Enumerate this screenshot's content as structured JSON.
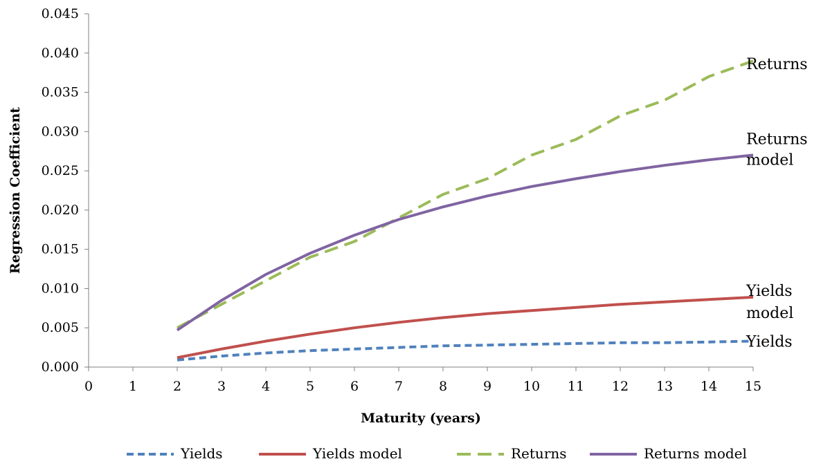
{
  "chart_data": {
    "type": "line",
    "title": "",
    "xlabel": "Maturity (years)",
    "ylabel": "Regression Coefficient",
    "xlim": [
      0,
      15
    ],
    "ylim": [
      0,
      0.045
    ],
    "x_ticks": [
      0,
      1,
      2,
      3,
      4,
      5,
      6,
      7,
      8,
      9,
      10,
      11,
      12,
      13,
      14,
      15
    ],
    "y_ticks": [
      "0.000",
      "0.005",
      "0.010",
      "0.015",
      "0.020",
      "0.025",
      "0.030",
      "0.035",
      "0.040",
      "0.045"
    ],
    "grid": false,
    "legend_position": "bottom",
    "x": [
      2,
      3,
      4,
      5,
      6,
      7,
      8,
      9,
      10,
      11,
      12,
      13,
      14,
      15
    ],
    "series": [
      {
        "name": "Yields",
        "color": "#4f81bd",
        "dash": "dash",
        "values": [
          0.0009,
          0.0014,
          0.0018,
          0.0021,
          0.0023,
          0.0025,
          0.0027,
          0.0028,
          0.0029,
          0.003,
          0.0031,
          0.0031,
          0.0032,
          0.0033
        ]
      },
      {
        "name": "Yields model",
        "color": "#c0504d",
        "dash": "solid",
        "values": [
          0.0012,
          0.0023,
          0.0033,
          0.0042,
          0.005,
          0.0057,
          0.0063,
          0.0068,
          0.0072,
          0.0076,
          0.008,
          0.0083,
          0.0086,
          0.0089
        ]
      },
      {
        "name": "Returns",
        "color": "#9bbb59",
        "dash": "longdash",
        "values": [
          0.005,
          0.008,
          0.011,
          0.014,
          0.016,
          0.019,
          0.022,
          0.024,
          0.027,
          0.029,
          0.032,
          0.034,
          0.037,
          0.039
        ]
      },
      {
        "name": "Returns model",
        "color": "#8064a2",
        "dash": "solid",
        "values": [
          0.0047,
          0.0085,
          0.0118,
          0.0145,
          0.0168,
          0.0188,
          0.0204,
          0.0218,
          0.023,
          0.024,
          0.0249,
          0.0257,
          0.0264,
          0.027
        ]
      }
    ],
    "annotations": [
      {
        "series": "Returns",
        "lines": [
          "Returns"
        ]
      },
      {
        "series": "Returns model",
        "lines": [
          "Returns",
          "model"
        ]
      },
      {
        "series": "Yields model",
        "lines": [
          "Yields",
          "model"
        ]
      },
      {
        "series": "Yields",
        "lines": [
          "Yields"
        ]
      }
    ]
  }
}
